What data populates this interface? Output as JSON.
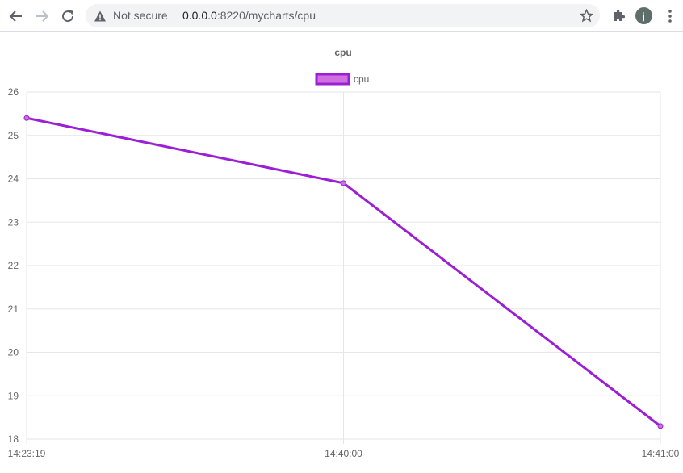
{
  "browser": {
    "security_label": "Not secure",
    "url_host": "0.0.0.0",
    "url_rest": ":8220/mycharts/cpu",
    "avatar_letter": "j",
    "icons": [
      "back-icon",
      "forward-icon",
      "reload-icon",
      "warning-icon",
      "star-icon",
      "extensions-icon",
      "menu-icon"
    ]
  },
  "chart_data": {
    "type": "line",
    "title": "cpu",
    "legend_position": "top-center",
    "grid": true,
    "categories": [
      "14:23:19",
      "14:40:00",
      "14:41:00"
    ],
    "ylim": [
      18,
      26
    ],
    "yticks": [
      18,
      19,
      20,
      21,
      22,
      23,
      24,
      25,
      26
    ],
    "series": [
      {
        "name": "cpu",
        "values": [
          25.4,
          23.9,
          18.3
        ],
        "color": "#9b1fd4",
        "fill": "#d070e0"
      }
    ]
  }
}
